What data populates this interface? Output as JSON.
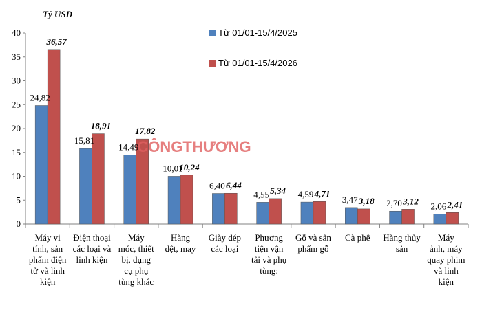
{
  "chart_data": {
    "type": "bar",
    "ylabel": "Tỷ USD",
    "ylim": [
      0,
      40
    ],
    "yticks": [
      0,
      5,
      10,
      15,
      20,
      25,
      30,
      35,
      40
    ],
    "grid": false,
    "legend_position": "top-right",
    "categories": [
      [
        "Máy vi",
        "tính, sản",
        "phẩm điện",
        "tử và linh",
        "kiện"
      ],
      [
        "Điện thoại",
        "các loại và",
        "linh kiện"
      ],
      [
        "Máy",
        "móc, thiết",
        "bị, dụng",
        "cụ phụ",
        "tùng khác"
      ],
      [
        "Hàng",
        "dệt, may"
      ],
      [
        "Giày dép",
        "các loại"
      ],
      [
        "Phương",
        "tiện vận",
        "tải và phụ",
        "tùng:"
      ],
      [
        "Gỗ và sản",
        "phẩm gỗ"
      ],
      [
        "Cà phê"
      ],
      [
        "Hàng thủy",
        "sản"
      ],
      [
        "Máy",
        "ảnh, máy",
        "quay phim",
        "và linh",
        "kiện"
      ]
    ],
    "series": [
      {
        "name": "Từ 01/01-15/4/2025",
        "color": "#4f81bd",
        "values": [
          24.82,
          15.81,
          14.49,
          10.01,
          6.4,
          4.55,
          4.59,
          3.47,
          2.7,
          2.06
        ],
        "labels": [
          "24,82",
          "15,81",
          "14,49",
          "10,01",
          "6,40",
          "4,55",
          "4,59",
          "3,47",
          "2,70",
          "2,06"
        ]
      },
      {
        "name": "Từ 01/01-15/4/2026",
        "color": "#c0504d",
        "values": [
          36.57,
          18.91,
          17.82,
          10.24,
          6.44,
          5.34,
          4.71,
          3.18,
          3.12,
          2.41
        ],
        "labels": [
          "36,57",
          "18,91",
          "17,82",
          "10,24",
          "6,44",
          "5,34",
          "4,71",
          "3,18",
          "3,12",
          "2,41"
        ]
      }
    ]
  },
  "watermark": {
    "text": "CÔNGTHƯƠNG",
    "color": "#e06060"
  }
}
